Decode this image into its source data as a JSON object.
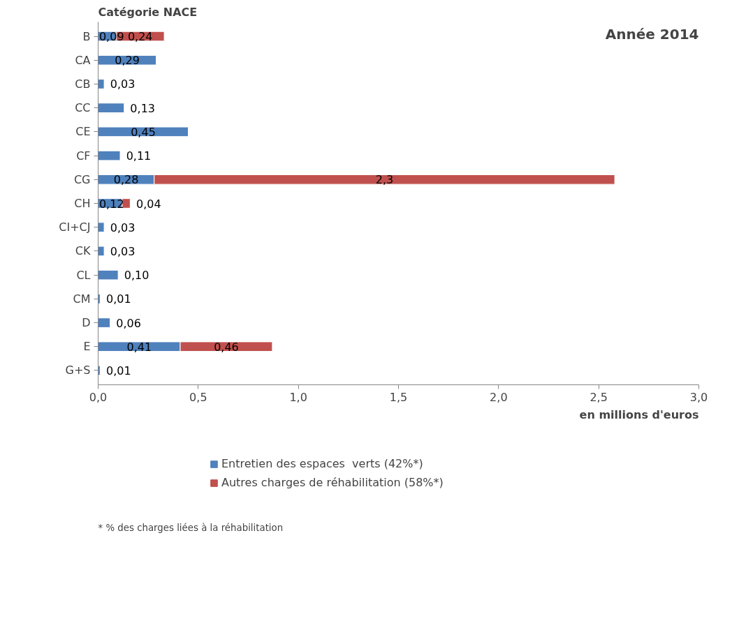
{
  "chart_data": {
    "type": "bar",
    "orientation": "horizontal",
    "stacked": true,
    "title": "Année 2014",
    "ylabel": "Catégorie   NACE",
    "xlabel": "en millions d'euros",
    "categories": [
      "B",
      "CA",
      "CB",
      "CC",
      "CE",
      "CF",
      "CG",
      "CH",
      "CI+CJ",
      "CK",
      "CL",
      "CM",
      "D",
      "E",
      "G+S"
    ],
    "series": [
      {
        "name": "Entretien des espaces  verts (42%*)",
        "color": "#4f81bd",
        "values": [
          0.09,
          0.29,
          0.03,
          0.13,
          0.45,
          0.11,
          0.28,
          0.12,
          0.03,
          0.03,
          0.1,
          0.01,
          0.06,
          0.41,
          0.01
        ],
        "value_labels": [
          "0,09",
          "0,29",
          "0,03",
          "0,13",
          "0,45",
          "0,11",
          "0,28",
          "0,12",
          "0,03",
          "0,03",
          "0,10",
          "0,01",
          "0,06",
          "0,41",
          "0,01"
        ]
      },
      {
        "name": "Autres charges de réhabilitation (58%*)",
        "color": "#c0504d",
        "values": [
          0.24,
          null,
          null,
          null,
          null,
          null,
          2.3,
          0.04,
          null,
          null,
          null,
          null,
          null,
          0.46,
          null
        ],
        "value_labels": [
          "0,24",
          null,
          null,
          null,
          null,
          null,
          "2,3",
          "0,04",
          null,
          null,
          null,
          null,
          null,
          "0,46",
          null
        ]
      }
    ],
    "xlim": [
      0,
      3.0
    ],
    "xticks": [
      {
        "value": 0,
        "label": "0,0"
      },
      {
        "value": 0.5,
        "label": "0,5"
      },
      {
        "value": 1.0,
        "label": "1,0"
      },
      {
        "value": 1.5,
        "label": "1,5"
      },
      {
        "value": 2.0,
        "label": "2,0"
      },
      {
        "value": 2.5,
        "label": "2,5"
      },
      {
        "value": 3.0,
        "label": "3,0"
      }
    ],
    "grid": false,
    "legend": "bottom",
    "annotations": [
      "* % des charges  liées à la réhabilitation"
    ]
  }
}
